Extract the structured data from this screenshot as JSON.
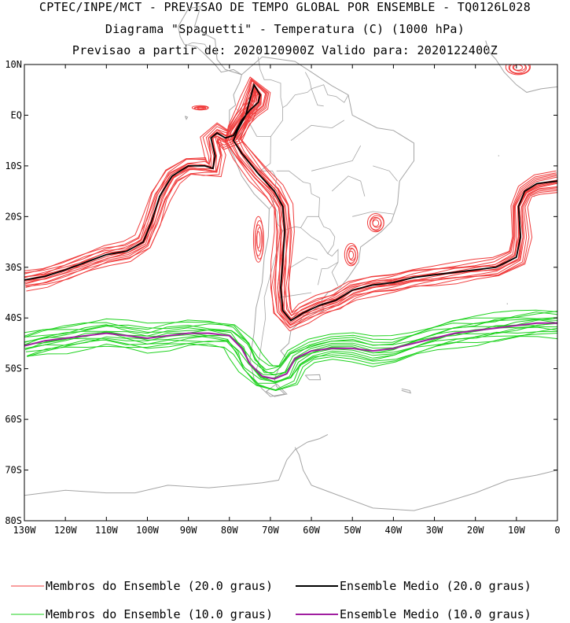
{
  "header": {
    "line1": "CPTEC/INPE/MCT - PREVISAO DE TEMPO GLOBAL POR ENSEMBLE - TQ0126L028",
    "line2": "Diagrama \"Spaguetti\" - Temperatura (C) (1000 hPa)",
    "line3": "Previsao a partir de: 2020120900Z  Valido para: 2020122400Z"
  },
  "chart_data": {
    "type": "line",
    "title": "Diagrama \"Spaguetti\" - Temperatura (C) (1000 hPa)",
    "xlim": [
      -130,
      0
    ],
    "ylim": [
      -80,
      10
    ],
    "x_ticks": [
      -130,
      -120,
      -110,
      -100,
      -90,
      -80,
      -70,
      -60,
      -50,
      -40,
      -30,
      -20,
      -10,
      0
    ],
    "x_tick_labels": [
      "130W",
      "120W",
      "110W",
      "100W",
      "90W",
      "80W",
      "70W",
      "60W",
      "50W",
      "40W",
      "30W",
      "20W",
      "10W",
      "0"
    ],
    "y_ticks": [
      10,
      0,
      -10,
      -20,
      -30,
      -40,
      -50,
      -60,
      -70,
      -80
    ],
    "y_tick_labels": [
      "10N",
      "EQ",
      "10S",
      "20S",
      "30S",
      "40S",
      "50S",
      "60S",
      "70S",
      "80S"
    ],
    "colors": {
      "member20": "#f03c3c",
      "mean20": "#000000",
      "member10": "#1ed21e",
      "mean10": "#a01ea0",
      "coast": "#a5a5a5"
    },
    "series": [
      {
        "name": "Ensemble Medio (20.0 graus)",
        "contour": 20,
        "points": [
          [
            -130,
            -32.5
          ],
          [
            -125,
            -31.8
          ],
          [
            -120,
            -30.5
          ],
          [
            -115,
            -29
          ],
          [
            -110,
            -27.5
          ],
          [
            -105,
            -26.8
          ],
          [
            -101,
            -25
          ],
          [
            -99,
            -21
          ],
          [
            -97,
            -16
          ],
          [
            -94,
            -12
          ],
          [
            -90,
            -10
          ],
          [
            -86,
            -10
          ],
          [
            -84,
            -10.5
          ],
          [
            -83.5,
            -8
          ],
          [
            -84.5,
            -4.5
          ],
          [
            -83,
            -3.5
          ],
          [
            -81,
            -4.5
          ],
          [
            -79,
            -4
          ],
          [
            -77,
            -1
          ],
          [
            -75,
            1
          ],
          [
            -73,
            2.5
          ],
          [
            -72.5,
            4
          ],
          [
            -74,
            6
          ],
          [
            -75,
            3
          ],
          [
            -76,
            0
          ],
          [
            -78,
            -3
          ],
          [
            -79,
            -5
          ],
          [
            -77,
            -7.5
          ],
          [
            -73,
            -11.5
          ],
          [
            -69,
            -15
          ],
          [
            -67,
            -18
          ],
          [
            -66.5,
            -23
          ],
          [
            -67,
            -29
          ],
          [
            -67.5,
            -34
          ],
          [
            -67,
            -38.5
          ],
          [
            -65,
            -40.5
          ],
          [
            -62,
            -39
          ],
          [
            -58,
            -37.5
          ],
          [
            -54,
            -36.5
          ],
          [
            -50,
            -34.5
          ],
          [
            -45,
            -33.5
          ],
          [
            -40,
            -33
          ],
          [
            -35,
            -32
          ],
          [
            -30,
            -31.5
          ],
          [
            -25,
            -31
          ],
          [
            -20,
            -30.5
          ],
          [
            -15,
            -30
          ],
          [
            -10,
            -28
          ],
          [
            -9,
            -24
          ],
          [
            -9.5,
            -18
          ],
          [
            -8,
            -15
          ],
          [
            -5,
            -13.5
          ],
          [
            0,
            -13
          ]
        ]
      },
      {
        "name": "Ensemble Medio (10.0 graus)",
        "contour": 10,
        "points": [
          [
            -130,
            -45.5
          ],
          [
            -125,
            -44.5
          ],
          [
            -120,
            -44
          ],
          [
            -115,
            -43.5
          ],
          [
            -110,
            -43
          ],
          [
            -105,
            -43.5
          ],
          [
            -100,
            -44
          ],
          [
            -95,
            -43.5
          ],
          [
            -90,
            -43
          ],
          [
            -85,
            -43
          ],
          [
            -80,
            -43.5
          ],
          [
            -77,
            -46
          ],
          [
            -75,
            -49
          ],
          [
            -72,
            -51.5
          ],
          [
            -69,
            -52
          ],
          [
            -66,
            -51
          ],
          [
            -64,
            -48
          ],
          [
            -60,
            -46.5
          ],
          [
            -55,
            -46
          ],
          [
            -50,
            -46
          ],
          [
            -45,
            -46.5
          ],
          [
            -40,
            -46
          ],
          [
            -35,
            -45
          ],
          [
            -30,
            -44
          ],
          [
            -25,
            -43
          ],
          [
            -20,
            -42.5
          ],
          [
            -15,
            -42
          ],
          [
            -10,
            -41.5
          ],
          [
            -5,
            -41
          ],
          [
            0,
            -41
          ]
        ]
      }
    ],
    "legend": [
      {
        "label": "Membros do Ensemble (20.0 graus)",
        "color_key": "member20"
      },
      {
        "label": "Ensemble Medio (20.0 graus)",
        "color_key": "mean20"
      },
      {
        "label": "Membros do Ensemble (10.0 graus)",
        "color_key": "member10"
      },
      {
        "label": "Ensemble Medio (10.0 graus)",
        "color_key": "mean10"
      }
    ],
    "members": {
      "count": 15,
      "contour20_offsets_deg": [
        -1.8,
        -1.4,
        -1.1,
        -0.8,
        -0.5,
        -0.3,
        -0.1,
        0.1,
        0.3,
        0.5,
        0.8,
        1.0,
        1.3,
        1.6,
        2.0
      ],
      "contour10_offsets_deg": [
        -2.6,
        -2.1,
        -1.7,
        -1.3,
        -1.0,
        -0.6,
        -0.3,
        0.0,
        0.3,
        0.6,
        1.0,
        1.3,
        1.7,
        2.1,
        2.6
      ]
    },
    "warm_islands_20": [
      {
        "lon": -72.8,
        "lat": -24.5,
        "rx_deg": 1.2,
        "ry_deg": 4.5
      },
      {
        "lon": -50.2,
        "lat": -27.5,
        "rx_deg": 1.6,
        "ry_deg": 2.2
      },
      {
        "lon": -44.2,
        "lat": -21.2,
        "rx_deg": 2.0,
        "ry_deg": 1.8
      },
      {
        "lon": -87.0,
        "lat": 1.5,
        "rx_deg": 2.0,
        "ry_deg": 0.4
      },
      {
        "lon": -9.5,
        "lat": 9.5,
        "rx_deg": 3.0,
        "ry_deg": 1.5
      }
    ]
  }
}
